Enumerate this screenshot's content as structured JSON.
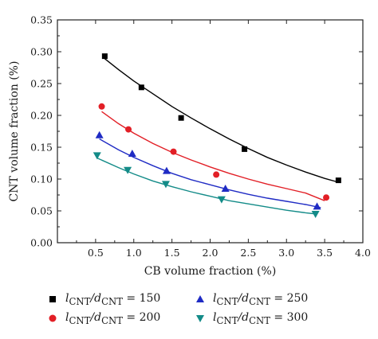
{
  "chart_data": {
    "type": "scatter",
    "title": "",
    "xlabel": "CB volume fraction (%)",
    "ylabel": "CNT volume fraction (%)",
    "xlim": [
      0,
      4.0
    ],
    "ylim": [
      0,
      0.35
    ],
    "xticks": [
      "0.5",
      "1.0",
      "1.5",
      "2.0",
      "2.5",
      "3.0",
      "3.5",
      "4.0"
    ],
    "xtick_values": [
      0.5,
      1.0,
      1.5,
      2.0,
      2.5,
      3.0,
      3.5,
      4.0
    ],
    "yticks": [
      "0.00",
      "0.05",
      "0.10",
      "0.15",
      "0.20",
      "0.25",
      "0.30",
      "0.35"
    ],
    "ytick_values": [
      0,
      0.05,
      0.1,
      0.15,
      0.2,
      0.25,
      0.3,
      0.35
    ],
    "grid": false,
    "legend_position": "bottom",
    "series": [
      {
        "name": "l_CNT/d_CNT = 150",
        "legend_main": "l",
        "legend_sub": "CNT",
        "legend_main2": "/d",
        "legend_sub2": "CNT",
        "legend_value": " = 150",
        "marker": "square",
        "color": "#000000",
        "x": [
          0.62,
          1.1,
          1.62,
          2.45,
          3.68
        ],
        "y": [
          0.293,
          0.244,
          0.196,
          0.147,
          0.098
        ],
        "fit_x": [
          0.6,
          0.8,
          1.0,
          1.25,
          1.5,
          1.75,
          2.0,
          2.25,
          2.5,
          2.75,
          3.0,
          3.25,
          3.5,
          3.68
        ],
        "fit_y": [
          0.291,
          0.272,
          0.254,
          0.234,
          0.214,
          0.196,
          0.179,
          0.163,
          0.148,
          0.134,
          0.122,
          0.111,
          0.101,
          0.095
        ]
      },
      {
        "name": "l_CNT/d_CNT = 200",
        "legend_main": "l",
        "legend_sub": "CNT",
        "legend_main2": "/d",
        "legend_sub2": "CNT",
        "legend_value": " = 200",
        "marker": "circle",
        "color": "#e21f26",
        "x": [
          0.58,
          0.93,
          1.52,
          2.08,
          3.52
        ],
        "y": [
          0.214,
          0.178,
          0.143,
          0.107,
          0.071
        ],
        "fit_x": [
          0.58,
          0.8,
          1.0,
          1.25,
          1.5,
          1.75,
          2.0,
          2.25,
          2.5,
          2.75,
          3.0,
          3.25,
          3.5
        ],
        "fit_y": [
          0.206,
          0.187,
          0.172,
          0.156,
          0.142,
          0.13,
          0.119,
          0.109,
          0.1,
          0.092,
          0.085,
          0.078,
          0.066
        ]
      },
      {
        "name": "l_CNT/d_CNT = 250",
        "legend_main": "l",
        "legend_sub": "CNT",
        "legend_main2": "/d",
        "legend_sub2": "CNT",
        "legend_value": " = 250",
        "marker": "triangle-up",
        "color": "#1f2bc4",
        "x": [
          0.55,
          0.98,
          1.43,
          2.2,
          3.4
        ],
        "y": [
          0.169,
          0.14,
          0.113,
          0.085,
          0.057
        ],
        "fit_x": [
          0.55,
          0.8,
          1.0,
          1.25,
          1.5,
          1.75,
          2.0,
          2.25,
          2.5,
          2.75,
          3.0,
          3.25,
          3.45
        ],
        "fit_y": [
          0.163,
          0.146,
          0.134,
          0.121,
          0.109,
          0.099,
          0.091,
          0.083,
          0.076,
          0.07,
          0.065,
          0.06,
          0.055
        ]
      },
      {
        "name": "l_CNT/d_CNT = 300",
        "legend_main": "l",
        "legend_sub": "CNT",
        "legend_main2": "/d",
        "legend_sub2": "CNT",
        "legend_value": " = 300",
        "marker": "triangle-down",
        "color": "#138b88",
        "x": [
          0.52,
          0.92,
          1.42,
          2.15,
          3.38
        ],
        "y": [
          0.137,
          0.114,
          0.092,
          0.068,
          0.045
        ],
        "fit_x": [
          0.52,
          0.8,
          1.0,
          1.25,
          1.5,
          1.75,
          2.0,
          2.25,
          2.5,
          2.75,
          3.0,
          3.25,
          3.4
        ],
        "fit_y": [
          0.133,
          0.118,
          0.108,
          0.097,
          0.088,
          0.08,
          0.073,
          0.066,
          0.061,
          0.056,
          0.051,
          0.047,
          0.045
        ]
      }
    ]
  }
}
